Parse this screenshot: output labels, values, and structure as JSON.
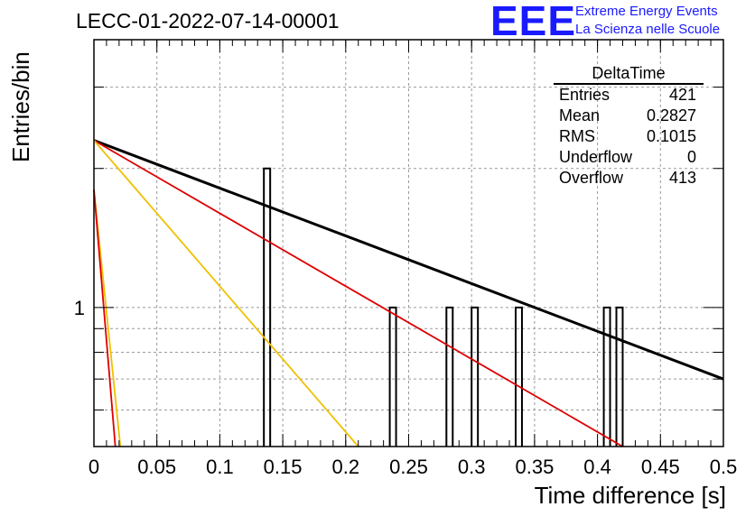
{
  "title": "LECC-01-2022-07-14-00001",
  "logo": {
    "mark": "EEE",
    "line1": "Extreme Energy Events",
    "line2": "La Scienza nelle Scuole",
    "color": "#1a1aff"
  },
  "stats": {
    "title": "DeltaTime",
    "rows": [
      {
        "label": "Entries",
        "value": "421"
      },
      {
        "label": "Mean",
        "value": "0.2827"
      },
      {
        "label": "RMS",
        "value": "0.1015"
      },
      {
        "label": "Underflow",
        "value": "0"
      },
      {
        "label": "Overflow",
        "value": "413"
      }
    ]
  },
  "chart_data": {
    "type": "bar",
    "xlabel": "Time difference [s]",
    "ylabel": "Entries/bin",
    "xlim": [
      0,
      0.5
    ],
    "ylim": [
      0.5,
      3.8
    ],
    "yscale": "log",
    "grid": true,
    "x_ticks": [
      "0",
      "0.05",
      "0.1",
      "0.15",
      "0.2",
      "0.25",
      "0.3",
      "0.35",
      "0.4",
      "0.45",
      "0.5"
    ],
    "y_ticks": [
      "1"
    ],
    "bin_width": 0.005,
    "histogram_bins": [
      {
        "x": 0.135,
        "count": 2
      },
      {
        "x": 0.235,
        "count": 1
      },
      {
        "x": 0.28,
        "count": 1
      },
      {
        "x": 0.3,
        "count": 1
      },
      {
        "x": 0.335,
        "count": 1
      },
      {
        "x": 0.405,
        "count": 1
      },
      {
        "x": 0.415,
        "count": 1
      }
    ],
    "series": [
      {
        "color": "#000000",
        "x": [
          0,
          0.5
        ],
        "y": [
          2.3,
          0.7
        ]
      },
      {
        "color": "#dd0000",
        "x": [
          0,
          0.42
        ],
        "y": [
          2.3,
          0.5
        ]
      },
      {
        "color": "#f0c000",
        "x": [
          0,
          0.21
        ],
        "y": [
          2.3,
          0.5
        ]
      },
      {
        "color": "#f0c000",
        "x": [
          0,
          0.021
        ],
        "y": [
          1.8,
          0.5
        ]
      },
      {
        "color": "#dd0000",
        "x": [
          0,
          0.017
        ],
        "y": [
          1.8,
          0.5
        ]
      }
    ]
  }
}
